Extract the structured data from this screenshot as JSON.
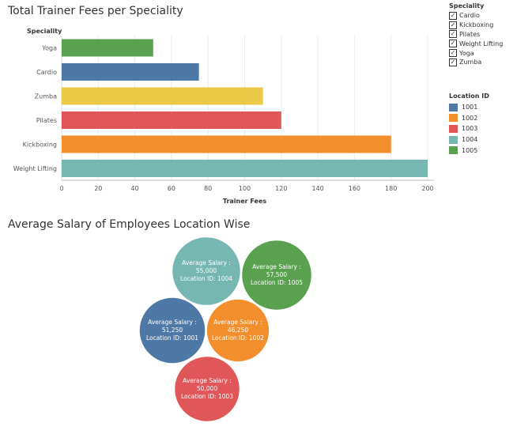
{
  "bar_title": "Total Trainer Fees per Speciality",
  "bubble_title": "Average Salary of Employees Location Wise",
  "filter": {
    "title": "Speciality",
    "items": [
      {
        "label": "Cardio",
        "checked": true
      },
      {
        "label": "Kickboxing",
        "checked": true
      },
      {
        "label": "Pilates",
        "checked": true
      },
      {
        "label": "Weight Lifting",
        "checked": true
      },
      {
        "label": "Yoga",
        "checked": true
      },
      {
        "label": "Zumba",
        "checked": true
      }
    ]
  },
  "legend": {
    "title": "Location ID",
    "items": [
      {
        "label": "1001",
        "color": "#4e79a7"
      },
      {
        "label": "1002",
        "color": "#f28e2b"
      },
      {
        "label": "1003",
        "color": "#e15759"
      },
      {
        "label": "1004",
        "color": "#76b7b2"
      },
      {
        "label": "1005",
        "color": "#59a14f"
      }
    ]
  },
  "chart_data": [
    {
      "type": "bar",
      "orientation": "horizontal",
      "title": "Total Trainer Fees per Speciality",
      "ylabel": "Speciality",
      "xlabel": "Trainer Fees",
      "xlim": [
        0,
        200
      ],
      "xticks": [
        0,
        20,
        40,
        60,
        80,
        100,
        120,
        140,
        160,
        180,
        200
      ],
      "grid": true,
      "categories": [
        "Yoga",
        "Cardio",
        "Zumba",
        "Pilates",
        "Kickboxing",
        "Weight Lifting"
      ],
      "values": [
        50,
        75,
        110,
        120,
        180,
        200
      ],
      "location_ids": [
        "1005",
        "1001",
        "1004",
        "1003",
        "1002",
        "1004"
      ],
      "colors": [
        "#59a14f",
        "#4e79a7",
        "#edc948",
        "#e15759",
        "#f28e2b",
        "#76b7b2"
      ]
    },
    {
      "type": "bubble",
      "title": "Average Salary of Employees Location Wise",
      "measure_label": "Average Salary :",
      "location_label": "Location ID:",
      "bubbles": [
        {
          "location_id": "1004",
          "salary": 55000,
          "salary_text": "55,000",
          "color": "#76b7b2"
        },
        {
          "location_id": "1005",
          "salary": 57500,
          "salary_text": "57,500",
          "color": "#59a14f"
        },
        {
          "location_id": "1001",
          "salary": 51250,
          "salary_text": "51,250",
          "color": "#4e79a7"
        },
        {
          "location_id": "1002",
          "salary": 46250,
          "salary_text": "46,250",
          "color": "#f28e2b"
        },
        {
          "location_id": "1003",
          "salary": 50000,
          "salary_text": "50,000",
          "color": "#e15759"
        }
      ]
    }
  ]
}
